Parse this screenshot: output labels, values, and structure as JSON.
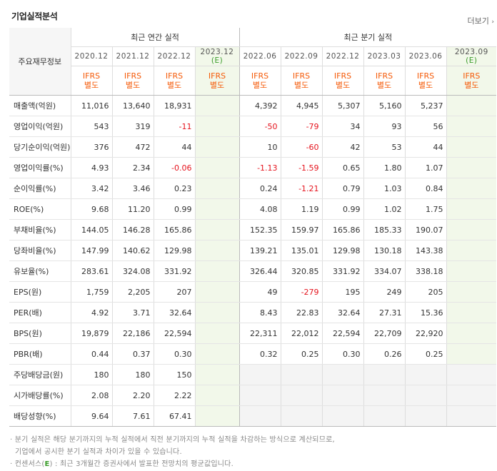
{
  "title": "기업실적분석",
  "more_label": "더보기",
  "annual_group": "최근 연간 실적",
  "quarter_group": "최근 분기 실적",
  "row_header": "주요재무정보",
  "annual_periods": [
    {
      "label": "2020.12",
      "est": ""
    },
    {
      "label": "2021.12",
      "est": ""
    },
    {
      "label": "2022.12",
      "est": ""
    },
    {
      "label": "2023.12",
      "est": "(E)"
    }
  ],
  "quarter_periods": [
    {
      "label": "2022.06",
      "est": ""
    },
    {
      "label": "2022.09",
      "est": ""
    },
    {
      "label": "2022.12",
      "est": ""
    },
    {
      "label": "2023.03",
      "est": ""
    },
    {
      "label": "2023.06",
      "est": ""
    },
    {
      "label": "2023.09",
      "est": "(E)"
    }
  ],
  "basis_line1": "IFRS",
  "basis_line2": "별도",
  "rows": [
    {
      "label": "매출액(억원)",
      "annual": [
        "11,016",
        "13,640",
        "18,931",
        ""
      ],
      "quarter": [
        "4,392",
        "4,945",
        "5,307",
        "5,160",
        "5,237",
        ""
      ]
    },
    {
      "label": "영업이익(억원)",
      "annual": [
        "543",
        "319",
        "-11",
        ""
      ],
      "quarter": [
        "-50",
        "-79",
        "34",
        "93",
        "56",
        ""
      ]
    },
    {
      "label": "당기순이익(억원)",
      "annual": [
        "376",
        "472",
        "44",
        ""
      ],
      "quarter": [
        "10",
        "-60",
        "42",
        "53",
        "44",
        ""
      ]
    },
    {
      "label": "영업이익률(%)",
      "annual": [
        "4.93",
        "2.34",
        "-0.06",
        ""
      ],
      "quarter": [
        "-1.13",
        "-1.59",
        "0.65",
        "1.80",
        "1.07",
        ""
      ]
    },
    {
      "label": "순이익률(%)",
      "annual": [
        "3.42",
        "3.46",
        "0.23",
        ""
      ],
      "quarter": [
        "0.24",
        "-1.21",
        "0.79",
        "1.03",
        "0.84",
        ""
      ]
    },
    {
      "label": "ROE(%)",
      "annual": [
        "9.68",
        "11.20",
        "0.99",
        ""
      ],
      "quarter": [
        "4.08",
        "1.19",
        "0.99",
        "1.02",
        "1.75",
        ""
      ]
    },
    {
      "label": "부채비율(%)",
      "annual": [
        "144.05",
        "146.28",
        "165.86",
        ""
      ],
      "quarter": [
        "152.35",
        "159.97",
        "165.86",
        "185.33",
        "190.07",
        ""
      ]
    },
    {
      "label": "당좌비율(%)",
      "annual": [
        "147.99",
        "140.62",
        "129.98",
        ""
      ],
      "quarter": [
        "139.21",
        "135.01",
        "129.98",
        "130.18",
        "143.38",
        ""
      ]
    },
    {
      "label": "유보율(%)",
      "annual": [
        "283.61",
        "324.08",
        "331.92",
        ""
      ],
      "quarter": [
        "326.44",
        "320.85",
        "331.92",
        "334.07",
        "338.18",
        ""
      ]
    },
    {
      "label": "EPS(원)",
      "annual": [
        "1,759",
        "2,205",
        "207",
        ""
      ],
      "quarter": [
        "49",
        "-279",
        "195",
        "249",
        "205",
        ""
      ]
    },
    {
      "label": "PER(배)",
      "annual": [
        "4.92",
        "3.71",
        "32.64",
        ""
      ],
      "quarter": [
        "8.43",
        "22.83",
        "32.64",
        "27.31",
        "15.36",
        ""
      ]
    },
    {
      "label": "BPS(원)",
      "annual": [
        "19,879",
        "22,186",
        "22,594",
        ""
      ],
      "quarter": [
        "22,311",
        "22,012",
        "22,594",
        "22,709",
        "22,920",
        ""
      ]
    },
    {
      "label": "PBR(배)",
      "annual": [
        "0.44",
        "0.37",
        "0.30",
        ""
      ],
      "quarter": [
        "0.32",
        "0.25",
        "0.30",
        "0.26",
        "0.25",
        ""
      ]
    },
    {
      "label": "주당배당금(원)",
      "annual": [
        "180",
        "180",
        "150",
        ""
      ],
      "quarter": [
        "",
        "",
        "",
        "",
        "",
        ""
      ]
    },
    {
      "label": "시가배당률(%)",
      "annual": [
        "2.08",
        "2.20",
        "2.22",
        ""
      ],
      "quarter": [
        "",
        "",
        "",
        "",
        "",
        ""
      ]
    },
    {
      "label": "배당성향(%)",
      "annual": [
        "9.64",
        "7.61",
        "67.41",
        ""
      ],
      "quarter": [
        "",
        "",
        "",
        "",
        "",
        ""
      ]
    }
  ],
  "notes": {
    "line1": "분기 실적은 해당 분기까지의 누적 실적에서 직전 분기까지의 누적 실적을 차감하는 방식으로 계산되므로,",
    "line2": "기업에서 공시한 분기 실적과 차이가 있을 수 있습니다.",
    "line3_pre": "컨센서스(",
    "line3_mark": "E",
    "line3_post": ") : 최근 3개월간 증권사에서 발표한 전망치의 평균값입니다."
  },
  "colors": {
    "negative": "#e5131d",
    "basis": "#f55a08",
    "estimate_bg": "#f2f8ea",
    "estimate_mark": "#3a9c2a"
  }
}
